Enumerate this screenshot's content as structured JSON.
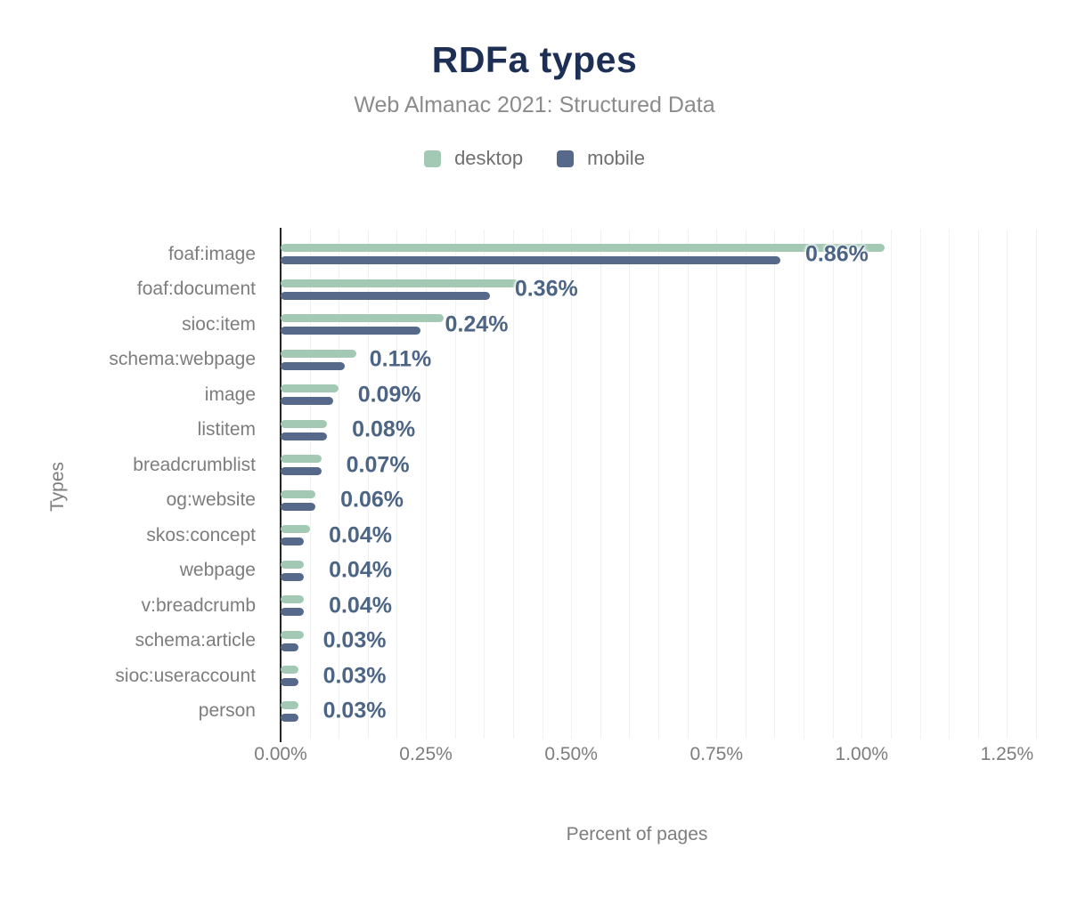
{
  "chart_data": {
    "type": "bar",
    "orientation": "horizontal",
    "title": "RDFa types",
    "subtitle": "Web Almanac 2021: Structured Data",
    "xlabel": "Percent of pages",
    "ylabel": "Types",
    "legend_position": "top",
    "grid": "vertical minor gridlines every 0.05%",
    "xlim": [
      0,
      1.25
    ],
    "x_ticks": [
      {
        "label": "0.00%",
        "value": 0
      },
      {
        "label": "0.25%",
        "value": 0.25
      },
      {
        "label": "0.50%",
        "value": 0.5
      },
      {
        "label": "0.75%",
        "value": 0.75
      },
      {
        "label": "1.00%",
        "value": 1.0
      },
      {
        "label": "1.25%",
        "value": 1.25
      }
    ],
    "categories": [
      "foaf:image",
      "foaf:document",
      "sioc:item",
      "schema:webpage",
      "image",
      "listitem",
      "breadcrumblist",
      "og:website",
      "skos:concept",
      "webpage",
      "v:breadcrumb",
      "schema:article",
      "sioc:useraccount",
      "person"
    ],
    "series": [
      {
        "name": "desktop",
        "color": "#a3c9b4",
        "values": [
          1.04,
          0.41,
          0.28,
          0.13,
          0.1,
          0.08,
          0.07,
          0.06,
          0.05,
          0.04,
          0.04,
          0.04,
          0.03,
          0.03
        ]
      },
      {
        "name": "mobile",
        "color": "#57698b",
        "values": [
          0.86,
          0.36,
          0.24,
          0.11,
          0.09,
          0.08,
          0.07,
          0.06,
          0.04,
          0.04,
          0.04,
          0.03,
          0.03,
          0.03
        ]
      }
    ],
    "data_labels": {
      "labelled_series": "mobile",
      "values": [
        "0.86%",
        "0.36%",
        "0.24%",
        "0.11%",
        "0.09%",
        "0.08%",
        "0.07%",
        "0.06%",
        "0.04%",
        "0.04%",
        "0.04%",
        "0.03%",
        "0.03%",
        "0.03%"
      ]
    }
  },
  "styles": {
    "title_color": "#1e2f55",
    "subtitle_color": "#8b8b8b",
    "label_color": "#4d6585",
    "axis_text_color": "#7d7d7d",
    "legend_text_color": "#6f6f6f",
    "grid_color": "#f1f1f1",
    "axis_line_color": "#262626"
  }
}
